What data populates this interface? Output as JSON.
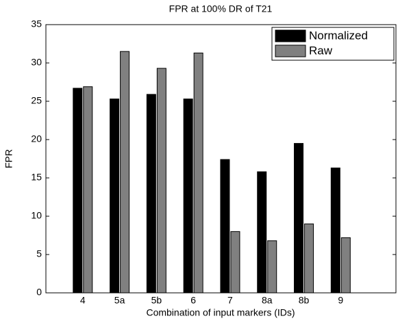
{
  "chart_data": {
    "type": "bar",
    "title": "FPR at 100% DR of T21",
    "x_label": "Combination of input markers (IDs)",
    "y_label": "FPR",
    "categories": [
      "4",
      "5a",
      "5b",
      "6",
      "7",
      "8a",
      "8b",
      "9"
    ],
    "series": [
      {
        "name": "Normalized",
        "color": "#000000",
        "values": [
          26.7,
          25.3,
          25.9,
          25.3,
          17.4,
          15.8,
          19.5,
          16.3
        ]
      },
      {
        "name": "Raw",
        "color": "#808080",
        "values": [
          26.9,
          31.5,
          29.3,
          31.3,
          8.0,
          6.8,
          9.0,
          7.2
        ]
      }
    ],
    "ylim": [
      0,
      35
    ],
    "yticks": [
      0,
      5,
      10,
      15,
      20,
      25,
      30,
      35
    ],
    "legend": "upper right",
    "grid": false
  }
}
